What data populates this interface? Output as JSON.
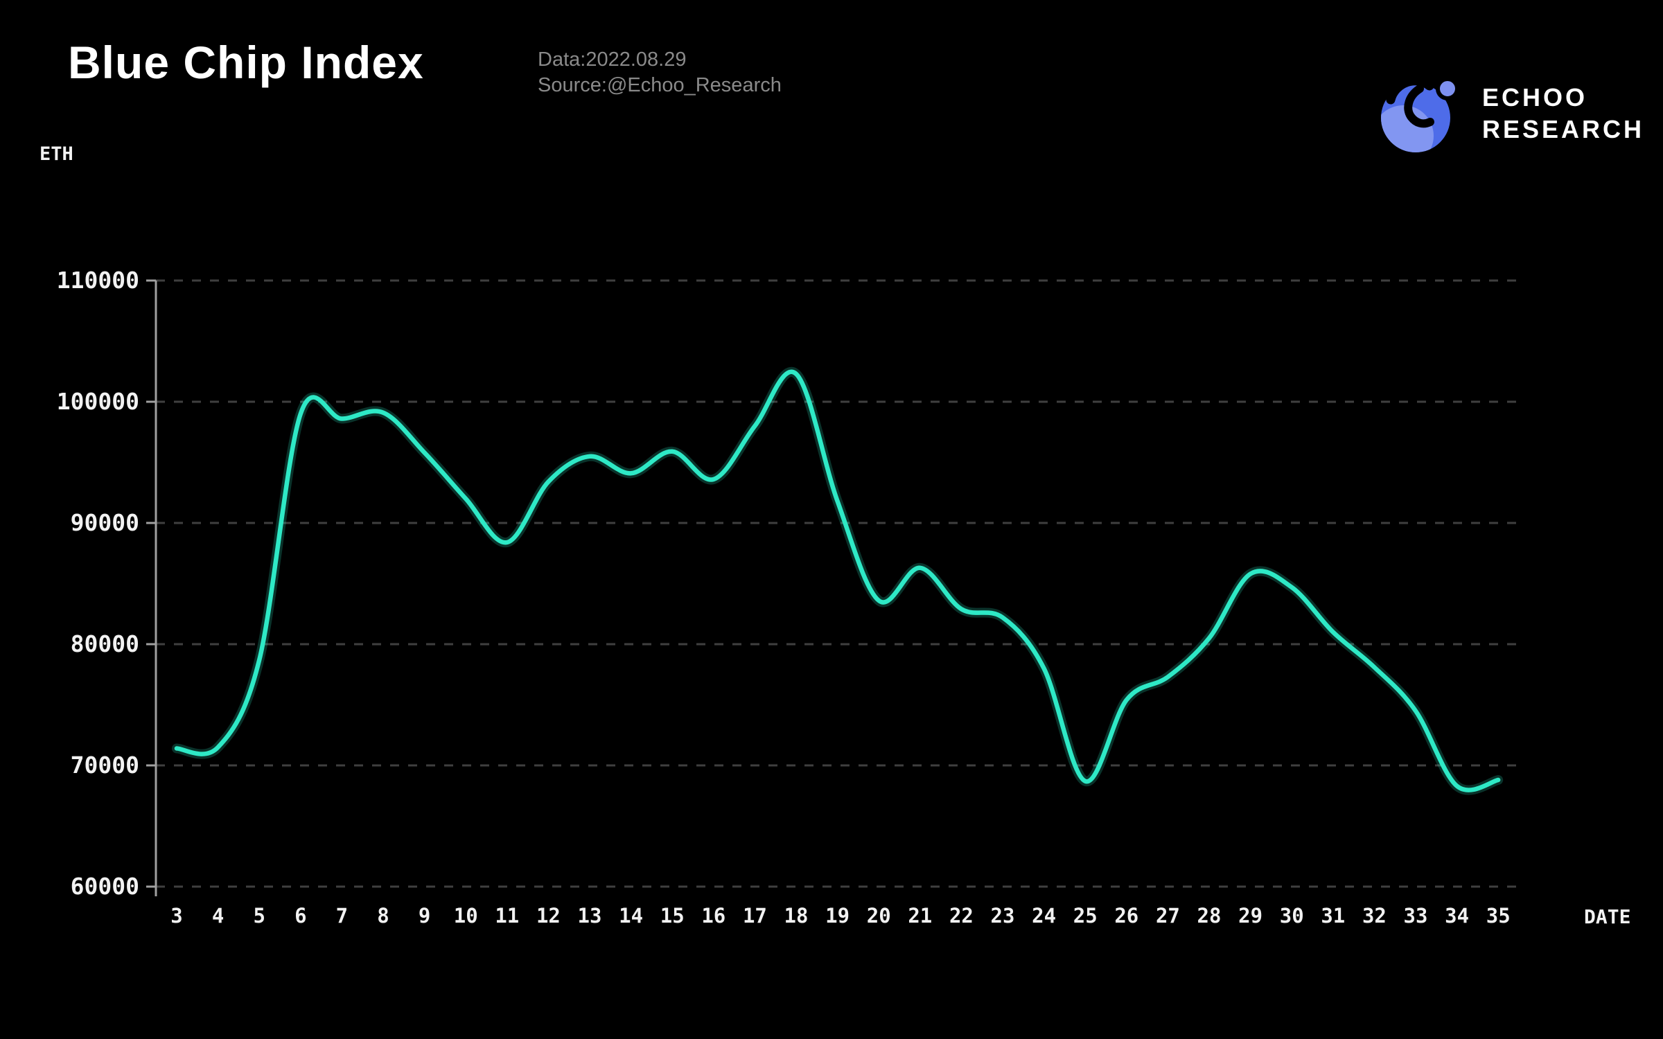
{
  "header": {
    "title": "Blue Chip Index",
    "data_label": "Data:2022.08.29",
    "source_label": "Source:@Echoo_Research"
  },
  "logo": {
    "line1": "ECHOO",
    "line2": "RESEARCH",
    "icon_colors": {
      "circle": "#4e6ce9",
      "crescent": "#8296f1",
      "dot": "#7e91f0"
    }
  },
  "chart_data": {
    "type": "line",
    "title": "Blue Chip Index",
    "xlabel": "DATE",
    "ylabel": "ETH",
    "x": [
      3,
      4,
      5,
      6,
      7,
      8,
      9,
      10,
      11,
      12,
      13,
      14,
      15,
      16,
      17,
      18,
      19,
      20,
      21,
      22,
      23,
      24,
      25,
      26,
      27,
      28,
      29,
      30,
      31,
      32,
      33,
      34,
      35
    ],
    "series": [
      {
        "name": "Blue Chip Index",
        "values": [
          71400,
          71500,
          78700,
          99000,
          98600,
          99100,
          95800,
          92000,
          88400,
          93400,
          95500,
          94100,
          95900,
          93600,
          98000,
          102300,
          91800,
          83600,
          86300,
          82900,
          82200,
          78000,
          68700,
          75400,
          77300,
          80500,
          85800,
          84700,
          81000,
          78100,
          74500,
          68300,
          68800
        ]
      }
    ],
    "ylim": [
      60000,
      110000
    ],
    "yticks": [
      60000,
      70000,
      80000,
      90000,
      100000,
      110000
    ],
    "grid": "horizontal-dashed",
    "legend": "none",
    "colors": {
      "line": "#2ee9c6",
      "axis": "#a0a0a0",
      "grid": "#3f3f3f",
      "tick_text": "#f2f2f2",
      "background": "#000000"
    }
  }
}
